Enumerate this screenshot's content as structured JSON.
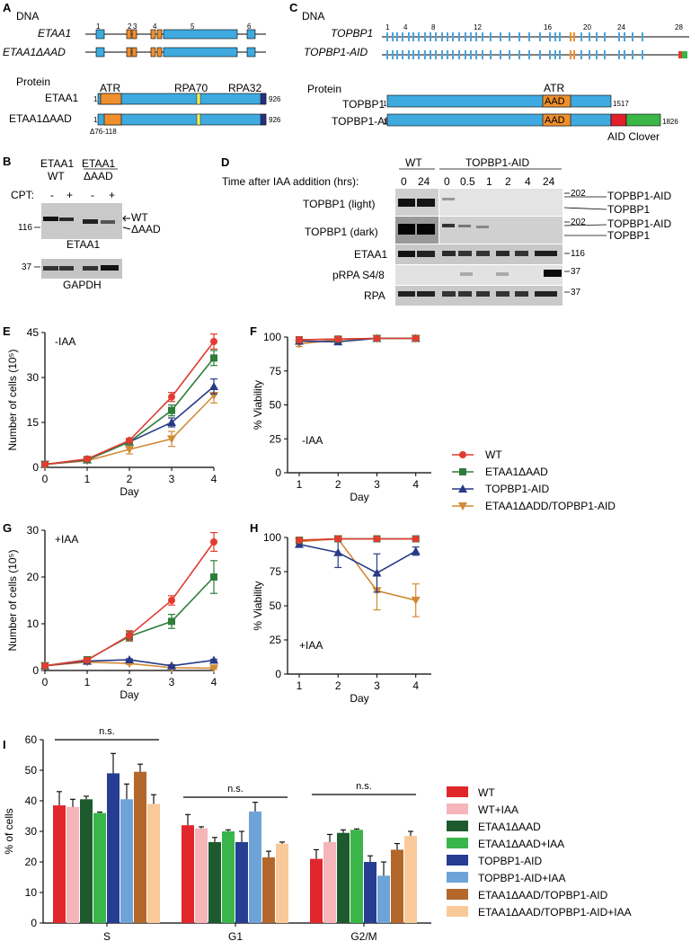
{
  "panels": {
    "A": {
      "label": "A",
      "dna_title": "DNA",
      "protein_title": "Protein",
      "genes": [
        "ETAA1",
        "ETAA1ΔAAD"
      ],
      "exon_numbers": [
        "1",
        "2",
        "3",
        "4",
        "5",
        "6"
      ],
      "proteins": [
        "ETAA1",
        "ETAA1ΔAAD"
      ],
      "domains": {
        "atr": "ATR",
        "rpa70": "RPA70",
        "rpa32": "RPA32"
      },
      "start": "1",
      "end": "926",
      "deletion": "Δ76-118"
    },
    "B": {
      "label": "B",
      "col1": [
        "ETAA1",
        "WT"
      ],
      "col2": [
        "ETAA1",
        "ΔAAD"
      ],
      "cpt_label": "CPT:",
      "cpt_marks": [
        "-",
        "+",
        "-",
        "+"
      ],
      "mw_top": "116",
      "mw_bottom": "37",
      "blot_top": "ETAA1",
      "blot_bottom": "GAPDH",
      "arrows": [
        "WT",
        "ΔAAD"
      ]
    },
    "C": {
      "label": "C",
      "dna_title": "DNA",
      "protein_title": "Protein",
      "genes": [
        "TOPBP1",
        "TOPBP1-AID"
      ],
      "exon_numbers": [
        "1",
        "4",
        "8",
        "12",
        "16",
        "20",
        "24",
        "28"
      ],
      "proteins": [
        "TOPBP1",
        "TOPBP1-AID"
      ],
      "domains": {
        "atr": "ATR",
        "aad": "AAD",
        "aid_clover": "AID Clover"
      },
      "start": "1",
      "end_wt": "1517",
      "end_aid": "1826"
    },
    "D": {
      "label": "D",
      "group_wt": "WT",
      "group_aid": "TOPBP1-AID",
      "time_label": "Time after IAA addition (hrs):",
      "times": [
        "0",
        "24",
        "0",
        "0.5",
        "1",
        "2",
        "4",
        "24"
      ],
      "rows": [
        "TOPBP1 (light)",
        "TOPBP1 (dark)",
        "ETAA1",
        "pRPA S4/8",
        "RPA"
      ],
      "mw": [
        "202",
        "202",
        "116",
        "37",
        "37"
      ],
      "arrows": [
        "TOPBP1-AID",
        "TOPBP1",
        "TOPBP1-AID",
        "TOPBP1"
      ]
    },
    "E": {
      "label": "E",
      "condition": "-IAA"
    },
    "F": {
      "label": "F",
      "condition": "-IAA"
    },
    "G": {
      "label": "G",
      "condition": "+IAA"
    },
    "H": {
      "label": "H",
      "condition": "+IAA"
    },
    "I": {
      "label": "I",
      "ns": "n.s."
    }
  },
  "legend_growth": [
    {
      "name": "WT",
      "color": "#e23b31",
      "marker": "circle"
    },
    {
      "name": "ETAA1ΔAAD",
      "color": "#2e7d3a",
      "marker": "square"
    },
    {
      "name": "TOPBP1-AID",
      "color": "#283a86",
      "marker": "triangle"
    },
    {
      "name": "ETAA1ΔADD/TOPBP1-AID",
      "color": "#d28a35",
      "marker": "triangle-down"
    }
  ],
  "chart_data": [
    {
      "id": "E",
      "type": "line",
      "title": "-IAA",
      "xlabel": "Day",
      "ylabel": "Number of cells (10⁵)",
      "x": [
        0,
        1,
        2,
        3,
        4
      ],
      "xlim": [
        0,
        4
      ],
      "ylim": [
        0,
        45
      ],
      "yticks": [
        0,
        15,
        30,
        45
      ],
      "series": [
        {
          "name": "WT",
          "values": [
            1,
            2.8,
            9,
            23.5,
            42
          ],
          "err": [
            0,
            0.3,
            0.6,
            1.5,
            2.5
          ]
        },
        {
          "name": "ETAA1ΔAAD",
          "values": [
            1,
            2.6,
            8.5,
            19,
            36.5
          ],
          "err": [
            0,
            0.3,
            0.6,
            1.8,
            2.5
          ]
        },
        {
          "name": "TOPBP1-AID",
          "values": [
            1,
            2.5,
            8.5,
            15,
            27
          ],
          "err": [
            0,
            0.3,
            0.6,
            1.5,
            2.5
          ]
        },
        {
          "name": "ETAA1ΔADD/TOPBP1-AID",
          "values": [
            1,
            2.2,
            6,
            9.5,
            24
          ],
          "err": [
            0,
            0.3,
            1.5,
            2.5,
            2.5
          ]
        }
      ]
    },
    {
      "id": "F",
      "type": "line",
      "title": "-IAA",
      "xlabel": "Day",
      "ylabel": "% Viability",
      "x": [
        1,
        2,
        3,
        4
      ],
      "xlim": [
        0.7,
        4.4
      ],
      "ylim": [
        0,
        100
      ],
      "yticks": [
        0,
        25,
        50,
        75,
        100
      ],
      "series": [
        {
          "name": "WT",
          "values": [
            98,
            98.5,
            99,
            99
          ],
          "err": [
            2,
            1,
            0.5,
            0.5
          ]
        },
        {
          "name": "ETAA1ΔAAD",
          "values": [
            98,
            98.5,
            99,
            99
          ],
          "err": [
            2,
            1,
            0.5,
            0.5
          ]
        },
        {
          "name": "TOPBP1-AID",
          "values": [
            97,
            96.5,
            99,
            99
          ],
          "err": [
            2,
            1,
            0.5,
            0.5
          ]
        },
        {
          "name": "ETAA1ΔADD/TOPBP1-AID",
          "values": [
            95,
            98,
            99,
            99
          ],
          "err": [
            2,
            1,
            0.5,
            0.5
          ]
        }
      ]
    },
    {
      "id": "G",
      "type": "line",
      "title": "+IAA",
      "xlabel": "Day",
      "ylabel": "Number of cells (10⁵)",
      "x": [
        0,
        1,
        2,
        3,
        4
      ],
      "xlim": [
        0,
        4
      ],
      "ylim": [
        0,
        30
      ],
      "yticks": [
        0,
        10,
        20,
        30
      ],
      "series": [
        {
          "name": "WT",
          "values": [
            1,
            2.2,
            7.5,
            15,
            27.5
          ],
          "err": [
            0,
            0.3,
            1,
            1,
            2
          ]
        },
        {
          "name": "ETAA1ΔAAD",
          "values": [
            1,
            2.3,
            7.3,
            10.5,
            20
          ],
          "err": [
            0,
            0.3,
            1,
            1.5,
            3.5
          ]
        },
        {
          "name": "TOPBP1-AID",
          "values": [
            1,
            2,
            2.3,
            1,
            2.2
          ],
          "err": [
            0,
            0.2,
            0.2,
            0.2,
            0.2
          ]
        },
        {
          "name": "ETAA1ΔADD/TOPBP1-AID",
          "values": [
            1,
            1.8,
            1.5,
            0.6,
            0.5
          ],
          "err": [
            0,
            0.2,
            0.2,
            0.2,
            0.2
          ]
        }
      ]
    },
    {
      "id": "H",
      "type": "line",
      "title": "+IAA",
      "xlabel": "Day",
      "ylabel": "% Viability",
      "x": [
        1,
        2,
        3,
        4
      ],
      "xlim": [
        0.7,
        4.4
      ],
      "ylim": [
        0,
        100
      ],
      "yticks": [
        0,
        25,
        50,
        75,
        100
      ],
      "series": [
        {
          "name": "WT",
          "values": [
            98,
            99,
            99,
            99
          ],
          "err": [
            1,
            1,
            0.5,
            0.5
          ]
        },
        {
          "name": "ETAA1ΔAAD",
          "values": [
            98,
            99,
            99,
            99
          ],
          "err": [
            1,
            1,
            0.5,
            0.5
          ]
        },
        {
          "name": "TOPBP1-AID",
          "values": [
            95,
            89,
            74,
            90
          ],
          "err": [
            2,
            11,
            14,
            3
          ]
        },
        {
          "name": "ETAA1ΔADD/TOPBP1-AID",
          "values": [
            97,
            99,
            61,
            54
          ],
          "err": [
            2,
            1,
            14,
            12
          ]
        }
      ]
    },
    {
      "id": "I",
      "type": "bar",
      "xlabel": "",
      "ylabel": "% of cells",
      "categories": [
        "S",
        "G1",
        "G2/M"
      ],
      "ylim": [
        0,
        60
      ],
      "yticks": [
        0,
        10,
        20,
        30,
        40,
        50,
        60
      ],
      "significance": "n.s.",
      "series": [
        {
          "name": "WT",
          "color": "#e1262c",
          "values": [
            38.5,
            32,
            21
          ],
          "err": [
            4.5,
            3.5,
            3
          ]
        },
        {
          "name": "WT+IAA",
          "color": "#f5b5b9",
          "values": [
            38,
            31,
            26.5
          ],
          "err": [
            2.5,
            0.5,
            2.5
          ]
        },
        {
          "name": "ETAA1ΔAAD",
          "color": "#1d5b2e",
          "values": [
            40.5,
            26.5,
            29.5
          ],
          "err": [
            1,
            1.5,
            1
          ]
        },
        {
          "name": "ETAA1ΔAAD+IAA",
          "color": "#3ab54a",
          "values": [
            36,
            30,
            30.5
          ],
          "err": [
            0.3,
            0.5,
            0.3
          ]
        },
        {
          "name": "TOPBP1-AID",
          "color": "#273c93",
          "values": [
            49,
            26.5,
            20
          ],
          "err": [
            6.5,
            3.5,
            2
          ]
        },
        {
          "name": "TOPBP1-AID+IAA",
          "color": "#6ea3d8",
          "values": [
            40.5,
            36.5,
            15.5
          ],
          "err": [
            5,
            3,
            4.5
          ]
        },
        {
          "name": "ETAA1ΔAAD/TOPBP1-AID",
          "color": "#b3672b",
          "values": [
            49.5,
            21.5,
            24
          ],
          "err": [
            2.5,
            2,
            2
          ]
        },
        {
          "name": "ETAA1ΔAAD/TOPBP1-AID+IAA",
          "color": "#f9c99a",
          "values": [
            39,
            26,
            28.5
          ],
          "err": [
            3,
            0.5,
            1.5
          ]
        }
      ]
    }
  ]
}
